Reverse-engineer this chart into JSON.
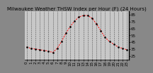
{
  "title": "Milwaukee Weather THSW Index per Hour (F) (24 Hours)",
  "hours": [
    0,
    1,
    2,
    3,
    4,
    5,
    6,
    7,
    8,
    9,
    10,
    11,
    12,
    13,
    14,
    15,
    16,
    17,
    18,
    19,
    20,
    21,
    22,
    23
  ],
  "values": [
    38,
    36,
    35,
    34,
    33,
    32,
    30,
    36,
    46,
    58,
    68,
    76,
    82,
    84,
    84,
    80,
    72,
    62,
    52,
    46,
    42,
    38,
    36,
    34
  ],
  "line_color": "#ff0000",
  "dot_color": "#000000",
  "bg_color": "#888888",
  "plot_bg_color": "#c8c8c8",
  "grid_color": "#555555",
  "ytick_labels": [
    "85",
    "75",
    "65",
    "55",
    "45",
    "35",
    "25"
  ],
  "ytick_values": [
    85,
    75,
    65,
    55,
    45,
    35,
    25
  ],
  "ylim": [
    20,
    90
  ],
  "xlim": [
    -0.5,
    23.5
  ],
  "title_fontsize": 5,
  "tick_fontsize": 4,
  "ylabel_fontsize": 4
}
